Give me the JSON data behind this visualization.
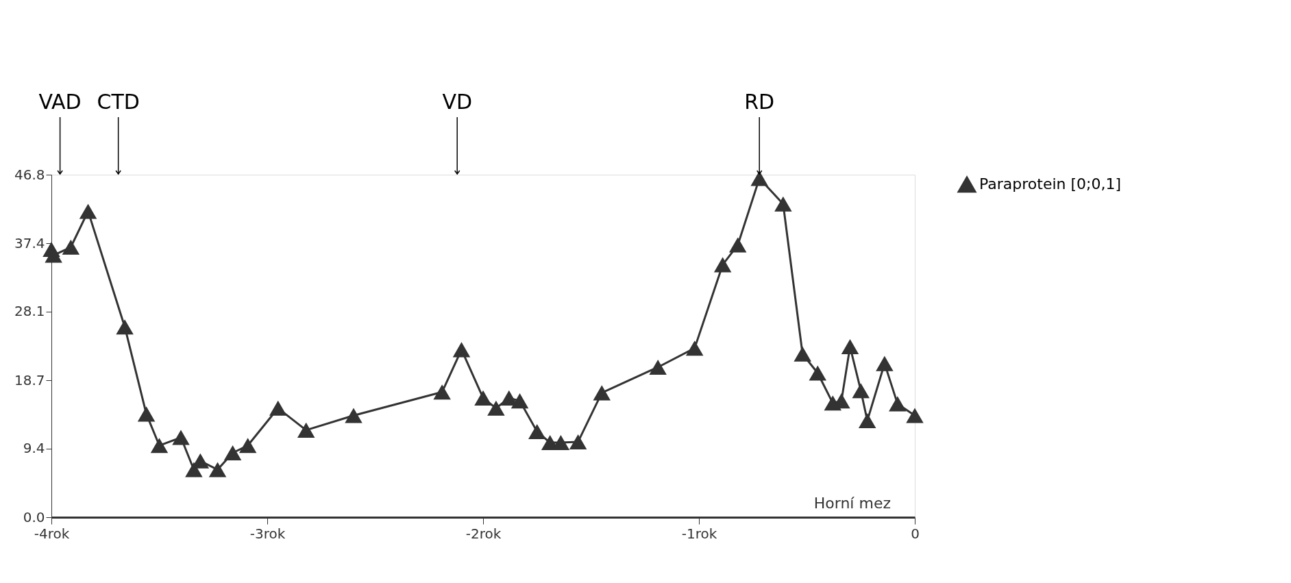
{
  "chart_data": {
    "type": "line",
    "x": [
      -4.0,
      -3.99,
      -3.91,
      -3.83,
      -3.66,
      -3.56,
      -3.5,
      -3.4,
      -3.34,
      -3.31,
      -3.23,
      -3.16,
      -3.09,
      -2.95,
      -2.82,
      -2.6,
      -2.19,
      -2.1,
      -2.0,
      -1.94,
      -1.88,
      -1.83,
      -1.75,
      -1.69,
      -1.64,
      -1.56,
      -1.45,
      -1.19,
      -1.02,
      -0.89,
      -0.82,
      -0.72,
      -0.61,
      -0.52,
      -0.45,
      -0.38,
      -0.34,
      -0.3,
      -0.25,
      -0.22,
      -0.14,
      -0.08,
      0.0
    ],
    "series": [
      {
        "name": "Paraprotein [0;0,1]",
        "color": "#333333",
        "values": [
          36.6,
          35.8,
          36.9,
          41.8,
          26.0,
          14.1,
          9.8,
          10.9,
          6.5,
          7.7,
          6.5,
          8.8,
          9.8,
          14.9,
          11.9,
          13.9,
          17.1,
          22.9,
          16.3,
          14.9,
          16.3,
          15.9,
          11.7,
          10.2,
          10.2,
          10.3,
          17.0,
          20.5,
          23.1,
          34.5,
          37.2,
          46.3,
          42.8,
          22.3,
          19.7,
          15.6,
          15.9,
          23.3,
          17.3,
          13.2,
          21.0,
          15.5,
          13.9
        ]
      }
    ],
    "xlim": [
      -4,
      0
    ],
    "xticks": [
      {
        "value": -4,
        "label": "-4rok"
      },
      {
        "value": -3,
        "label": "-3rok"
      },
      {
        "value": -2,
        "label": "-2rok"
      },
      {
        "value": -1,
        "label": "-1rok"
      },
      0
    ],
    "ylim": [
      0,
      46.8
    ],
    "yticks": [
      {
        "value": 0,
        "label": "0.0"
      },
      9.4,
      18.7,
      28.1,
      37.4,
      46.8
    ],
    "annotations": [
      "Horní mez"
    ],
    "ref_lines": [
      {
        "axis": "x",
        "value": -3.96,
        "label": "VAD",
        "color": "#000000"
      },
      {
        "axis": "x",
        "value": -3.69,
        "label": "CTD",
        "color": "#000000"
      },
      {
        "axis": "x",
        "value": -2.12,
        "label": "VD",
        "color": "#000000"
      },
      {
        "axis": "x",
        "value": -0.72,
        "label": "RD",
        "color": "#000000"
      }
    ],
    "marker": "triangle",
    "line_style": "solid",
    "grid": false,
    "legend": "right"
  }
}
